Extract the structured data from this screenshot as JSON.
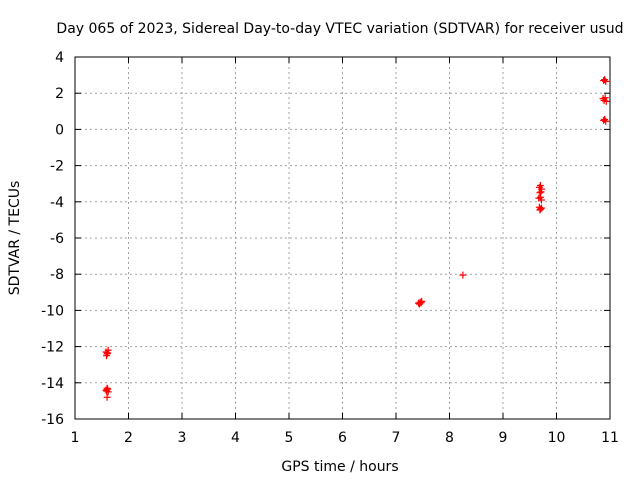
{
  "chart_data": {
    "type": "scatter",
    "title": "Day 065 of 2023, Sidereal Day-to-day VTEC variation (SDTVAR) for receiver usud",
    "xlabel": "GPS time / hours",
    "ylabel": "SDTVAR / TECUs",
    "xlim": [
      1,
      11
    ],
    "ylim": [
      -16,
      4
    ],
    "xticks": [
      1,
      2,
      3,
      4,
      5,
      6,
      7,
      8,
      9,
      10,
      11
    ],
    "yticks": [
      -16,
      -14,
      -12,
      -10,
      -8,
      -6,
      -4,
      -2,
      0,
      2,
      4
    ],
    "grid": true,
    "marker": "+",
    "color": "#ff0000",
    "series": [
      {
        "name": "SDTVAR",
        "points": [
          [
            1.58,
            -12.3
          ],
          [
            1.6,
            -12.4
          ],
          [
            1.62,
            -12.2
          ],
          [
            1.59,
            -12.5
          ],
          [
            1.61,
            -12.35
          ],
          [
            1.58,
            -14.4
          ],
          [
            1.6,
            -14.3
          ],
          [
            1.62,
            -14.5
          ],
          [
            1.59,
            -14.45
          ],
          [
            1.61,
            -14.35
          ],
          [
            1.6,
            -14.8
          ],
          [
            7.42,
            -9.6
          ],
          [
            7.45,
            -9.55
          ],
          [
            7.48,
            -9.5
          ],
          [
            7.44,
            -9.65
          ],
          [
            7.47,
            -9.58
          ],
          [
            8.25,
            -8.05
          ],
          [
            9.68,
            -3.2
          ],
          [
            9.7,
            -3.1
          ],
          [
            9.72,
            -3.3
          ],
          [
            9.69,
            -3.5
          ],
          [
            9.71,
            -3.45
          ],
          [
            9.67,
            -3.8
          ],
          [
            9.7,
            -3.75
          ],
          [
            9.72,
            -3.9
          ],
          [
            9.68,
            -4.3
          ],
          [
            9.7,
            -4.4
          ],
          [
            9.72,
            -4.35
          ],
          [
            9.69,
            -4.45
          ],
          [
            10.88,
            2.7
          ],
          [
            10.9,
            2.75
          ],
          [
            10.92,
            2.65
          ],
          [
            10.87,
            1.7
          ],
          [
            10.89,
            1.6
          ],
          [
            10.91,
            1.75
          ],
          [
            10.93,
            1.55
          ],
          [
            10.88,
            0.5
          ],
          [
            10.9,
            0.55
          ],
          [
            10.92,
            0.45
          ]
        ]
      }
    ]
  }
}
